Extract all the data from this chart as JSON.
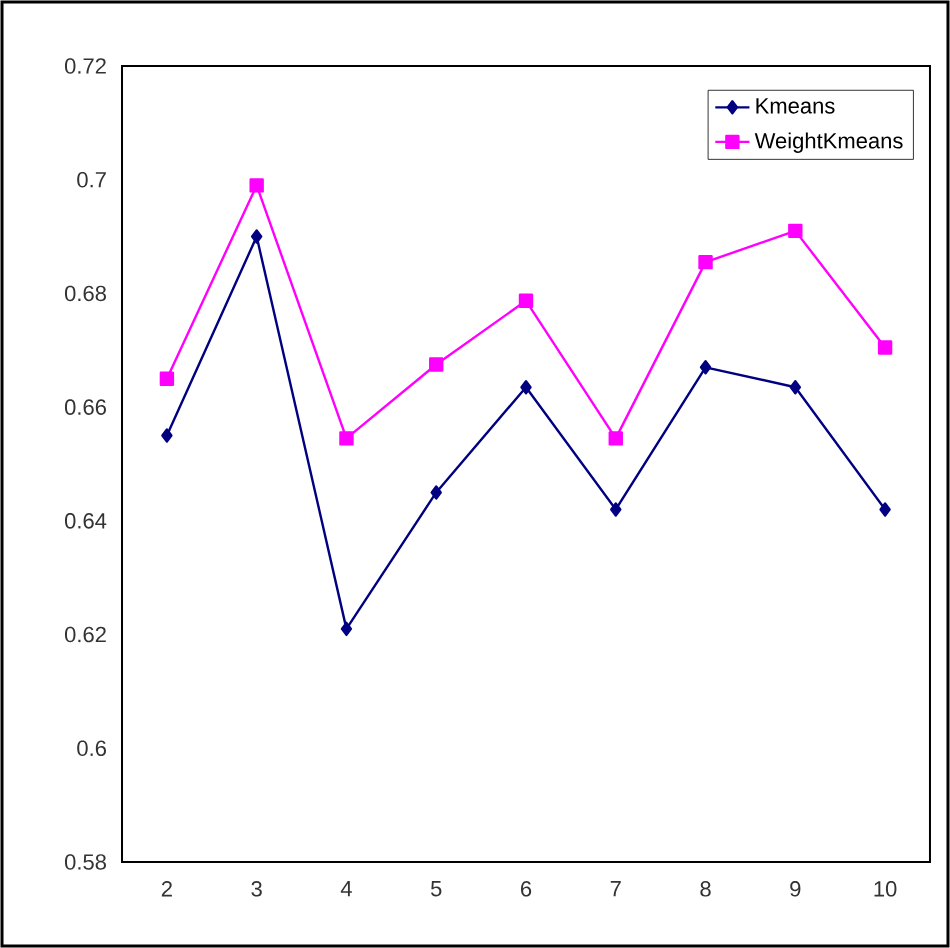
{
  "chart_data": {
    "type": "line",
    "categories": [
      "2",
      "3",
      "4",
      "5",
      "6",
      "7",
      "8",
      "9",
      "10"
    ],
    "series": [
      {
        "name": "Kmeans",
        "color": "#000080",
        "marker": "diamond",
        "values": [
          0.655,
          0.69,
          0.621,
          0.645,
          0.6635,
          0.642,
          0.667,
          0.6635,
          0.642
        ]
      },
      {
        "name": "WeightKmeans",
        "color": "#ff00ff",
        "marker": "square",
        "values": [
          0.665,
          0.699,
          0.6545,
          0.6675,
          0.6787,
          0.6545,
          0.6855,
          0.691,
          0.6705
        ]
      }
    ],
    "ylim": [
      0.58,
      0.72
    ],
    "yticks": [
      0.58,
      0.6,
      0.62,
      0.64,
      0.66,
      0.68,
      0.7,
      0.72
    ],
    "legend": "top right",
    "grid": false,
    "line_style": "solid"
  }
}
